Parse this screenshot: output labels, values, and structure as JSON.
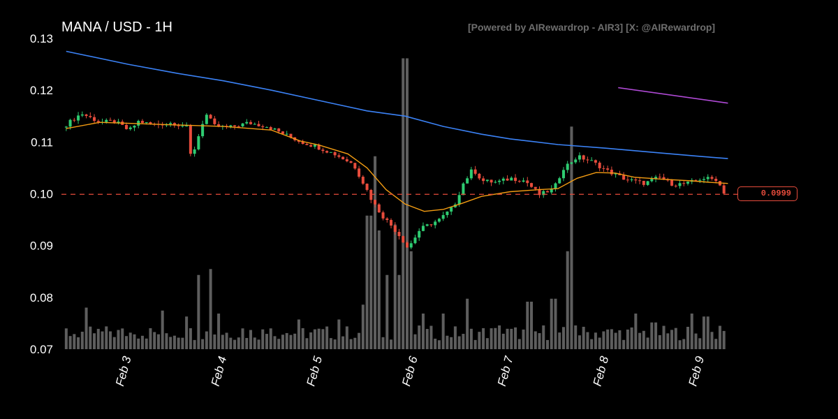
{
  "header": {
    "title": "MANA / USD - 1H",
    "watermark": "[Powered by AIRewardrop - AIR3] [X: @AIRewardrop]"
  },
  "price_tag": {
    "label": "0.0999"
  },
  "colors": {
    "background": "#000000",
    "up_candle": "#2ecc71",
    "down_candle": "#e74c3c",
    "ma_short": "#f39c12",
    "ma_long": "#3b82f6",
    "ma_purple": "#b04ad6",
    "volume": "#6e6e6e",
    "text": "#ffffff",
    "watermark": "#6e6e6e"
  },
  "chart_data": {
    "type": "candlestick",
    "title": "MANA / USD - 1H",
    "x_ticks": [
      "Feb 3",
      "Feb 4",
      "Feb 5",
      "Feb 6",
      "Feb 7",
      "Feb 8",
      "Feb 9"
    ],
    "y_ticks": [
      "0.13",
      "0.12",
      "0.11",
      "0.10",
      "0.09",
      "0.08",
      "0.07"
    ],
    "ylim": [
      0.07,
      0.13
    ],
    "xlim_days": [
      2.3,
      9.35
    ],
    "current_price": 0.0999,
    "price_path": [
      [
        2.35,
        0.1128
      ],
      [
        2.55,
        0.1155
      ],
      [
        2.75,
        0.1138
      ],
      [
        2.9,
        0.114
      ],
      [
        3.05,
        0.1122
      ],
      [
        3.15,
        0.114
      ],
      [
        3.3,
        0.1133
      ],
      [
        3.5,
        0.1137
      ],
      [
        3.65,
        0.113
      ],
      [
        3.7,
        0.1068
      ],
      [
        3.75,
        0.1095
      ],
      [
        3.85,
        0.1155
      ],
      [
        3.95,
        0.113
      ],
      [
        4.1,
        0.1128
      ],
      [
        4.3,
        0.1137
      ],
      [
        4.5,
        0.113
      ],
      [
        4.7,
        0.1113
      ],
      [
        4.85,
        0.11
      ],
      [
        5.0,
        0.1092
      ],
      [
        5.2,
        0.1077
      ],
      [
        5.4,
        0.1057
      ],
      [
        5.52,
        0.1015
      ],
      [
        5.6,
        0.0985
      ],
      [
        5.7,
        0.0958
      ],
      [
        5.8,
        0.0938
      ],
      [
        5.9,
        0.0915
      ],
      [
        5.97,
        0.0895
      ],
      [
        6.1,
        0.0932
      ],
      [
        6.3,
        0.095
      ],
      [
        6.45,
        0.0975
      ],
      [
        6.55,
        0.102
      ],
      [
        6.65,
        0.1048
      ],
      [
        6.75,
        0.1025
      ],
      [
        6.9,
        0.1022
      ],
      [
        7.05,
        0.103
      ],
      [
        7.2,
        0.1025
      ],
      [
        7.35,
        0.0998
      ],
      [
        7.5,
        0.101
      ],
      [
        7.6,
        0.105
      ],
      [
        7.75,
        0.1072
      ],
      [
        7.9,
        0.1062
      ],
      [
        8.05,
        0.1045
      ],
      [
        8.25,
        0.1028
      ],
      [
        8.45,
        0.102
      ],
      [
        8.6,
        0.1032
      ],
      [
        8.75,
        0.1018
      ],
      [
        8.9,
        0.102
      ],
      [
        9.05,
        0.103
      ],
      [
        9.2,
        0.1028
      ],
      [
        9.28,
        0.1003
      ]
    ],
    "ma_short_path": [
      [
        2.35,
        0.1126
      ],
      [
        2.7,
        0.1138
      ],
      [
        3.0,
        0.1136
      ],
      [
        3.5,
        0.1133
      ],
      [
        4.0,
        0.113
      ],
      [
        4.5,
        0.1123
      ],
      [
        4.8,
        0.1102
      ],
      [
        5.0,
        0.1094
      ],
      [
        5.3,
        0.1077
      ],
      [
        5.5,
        0.105
      ],
      [
        5.7,
        0.1008
      ],
      [
        5.9,
        0.098
      ],
      [
        6.1,
        0.0966
      ],
      [
        6.3,
        0.097
      ],
      [
        6.5,
        0.0982
      ],
      [
        6.7,
        0.0995
      ],
      [
        7.0,
        0.1004
      ],
      [
        7.3,
        0.1008
      ],
      [
        7.5,
        0.101
      ],
      [
        7.7,
        0.103
      ],
      [
        7.9,
        0.1041
      ],
      [
        8.1,
        0.104
      ],
      [
        8.3,
        0.1032
      ],
      [
        8.6,
        0.1028
      ],
      [
        8.9,
        0.1025
      ],
      [
        9.1,
        0.1022
      ],
      [
        9.28,
        0.102
      ]
    ],
    "ma_long_path": [
      [
        2.35,
        0.1275
      ],
      [
        3.0,
        0.125
      ],
      [
        3.5,
        0.1233
      ],
      [
        4.0,
        0.1218
      ],
      [
        4.5,
        0.12
      ],
      [
        5.0,
        0.118
      ],
      [
        5.5,
        0.116
      ],
      [
        5.9,
        0.115
      ],
      [
        6.3,
        0.113
      ],
      [
        6.7,
        0.1115
      ],
      [
        7.0,
        0.1106
      ],
      [
        7.5,
        0.1095
      ],
      [
        8.0,
        0.1088
      ],
      [
        8.5,
        0.108
      ],
      [
        9.0,
        0.1072
      ],
      [
        9.28,
        0.1068
      ]
    ],
    "ma_purple_path": [
      [
        8.13,
        0.1205
      ],
      [
        9.28,
        0.1175
      ]
    ],
    "volume_ylim": [
      0,
      1
    ],
    "volume_spikes": [
      [
        2.35,
        0.07
      ],
      [
        2.55,
        0.14
      ],
      [
        2.8,
        0.06
      ],
      [
        3.05,
        0.05
      ],
      [
        3.35,
        0.13
      ],
      [
        3.6,
        0.11
      ],
      [
        3.75,
        0.25
      ],
      [
        3.85,
        0.27
      ],
      [
        3.95,
        0.12
      ],
      [
        4.2,
        0.07
      ],
      [
        4.5,
        0.07
      ],
      [
        4.8,
        0.1
      ],
      [
        5.2,
        0.1
      ],
      [
        5.45,
        0.15
      ],
      [
        5.52,
        0.45
      ],
      [
        5.57,
        0.65
      ],
      [
        5.64,
        0.4
      ],
      [
        5.72,
        0.25
      ],
      [
        5.8,
        0.42
      ],
      [
        5.85,
        0.25
      ],
      [
        5.9,
        0.98
      ],
      [
        5.95,
        0.33
      ],
      [
        6.1,
        0.12
      ],
      [
        6.3,
        0.12
      ],
      [
        6.55,
        0.17
      ],
      [
        6.9,
        0.08
      ],
      [
        7.2,
        0.16
      ],
      [
        7.35,
        0.08
      ],
      [
        7.45,
        0.17
      ],
      [
        7.6,
        0.33
      ],
      [
        7.64,
        0.75
      ],
      [
        7.7,
        0.08
      ],
      [
        8.0,
        0.06
      ],
      [
        8.3,
        0.12
      ],
      [
        8.5,
        0.09
      ],
      [
        8.9,
        0.12
      ],
      [
        9.05,
        0.11
      ],
      [
        9.28,
        0.08
      ]
    ]
  }
}
